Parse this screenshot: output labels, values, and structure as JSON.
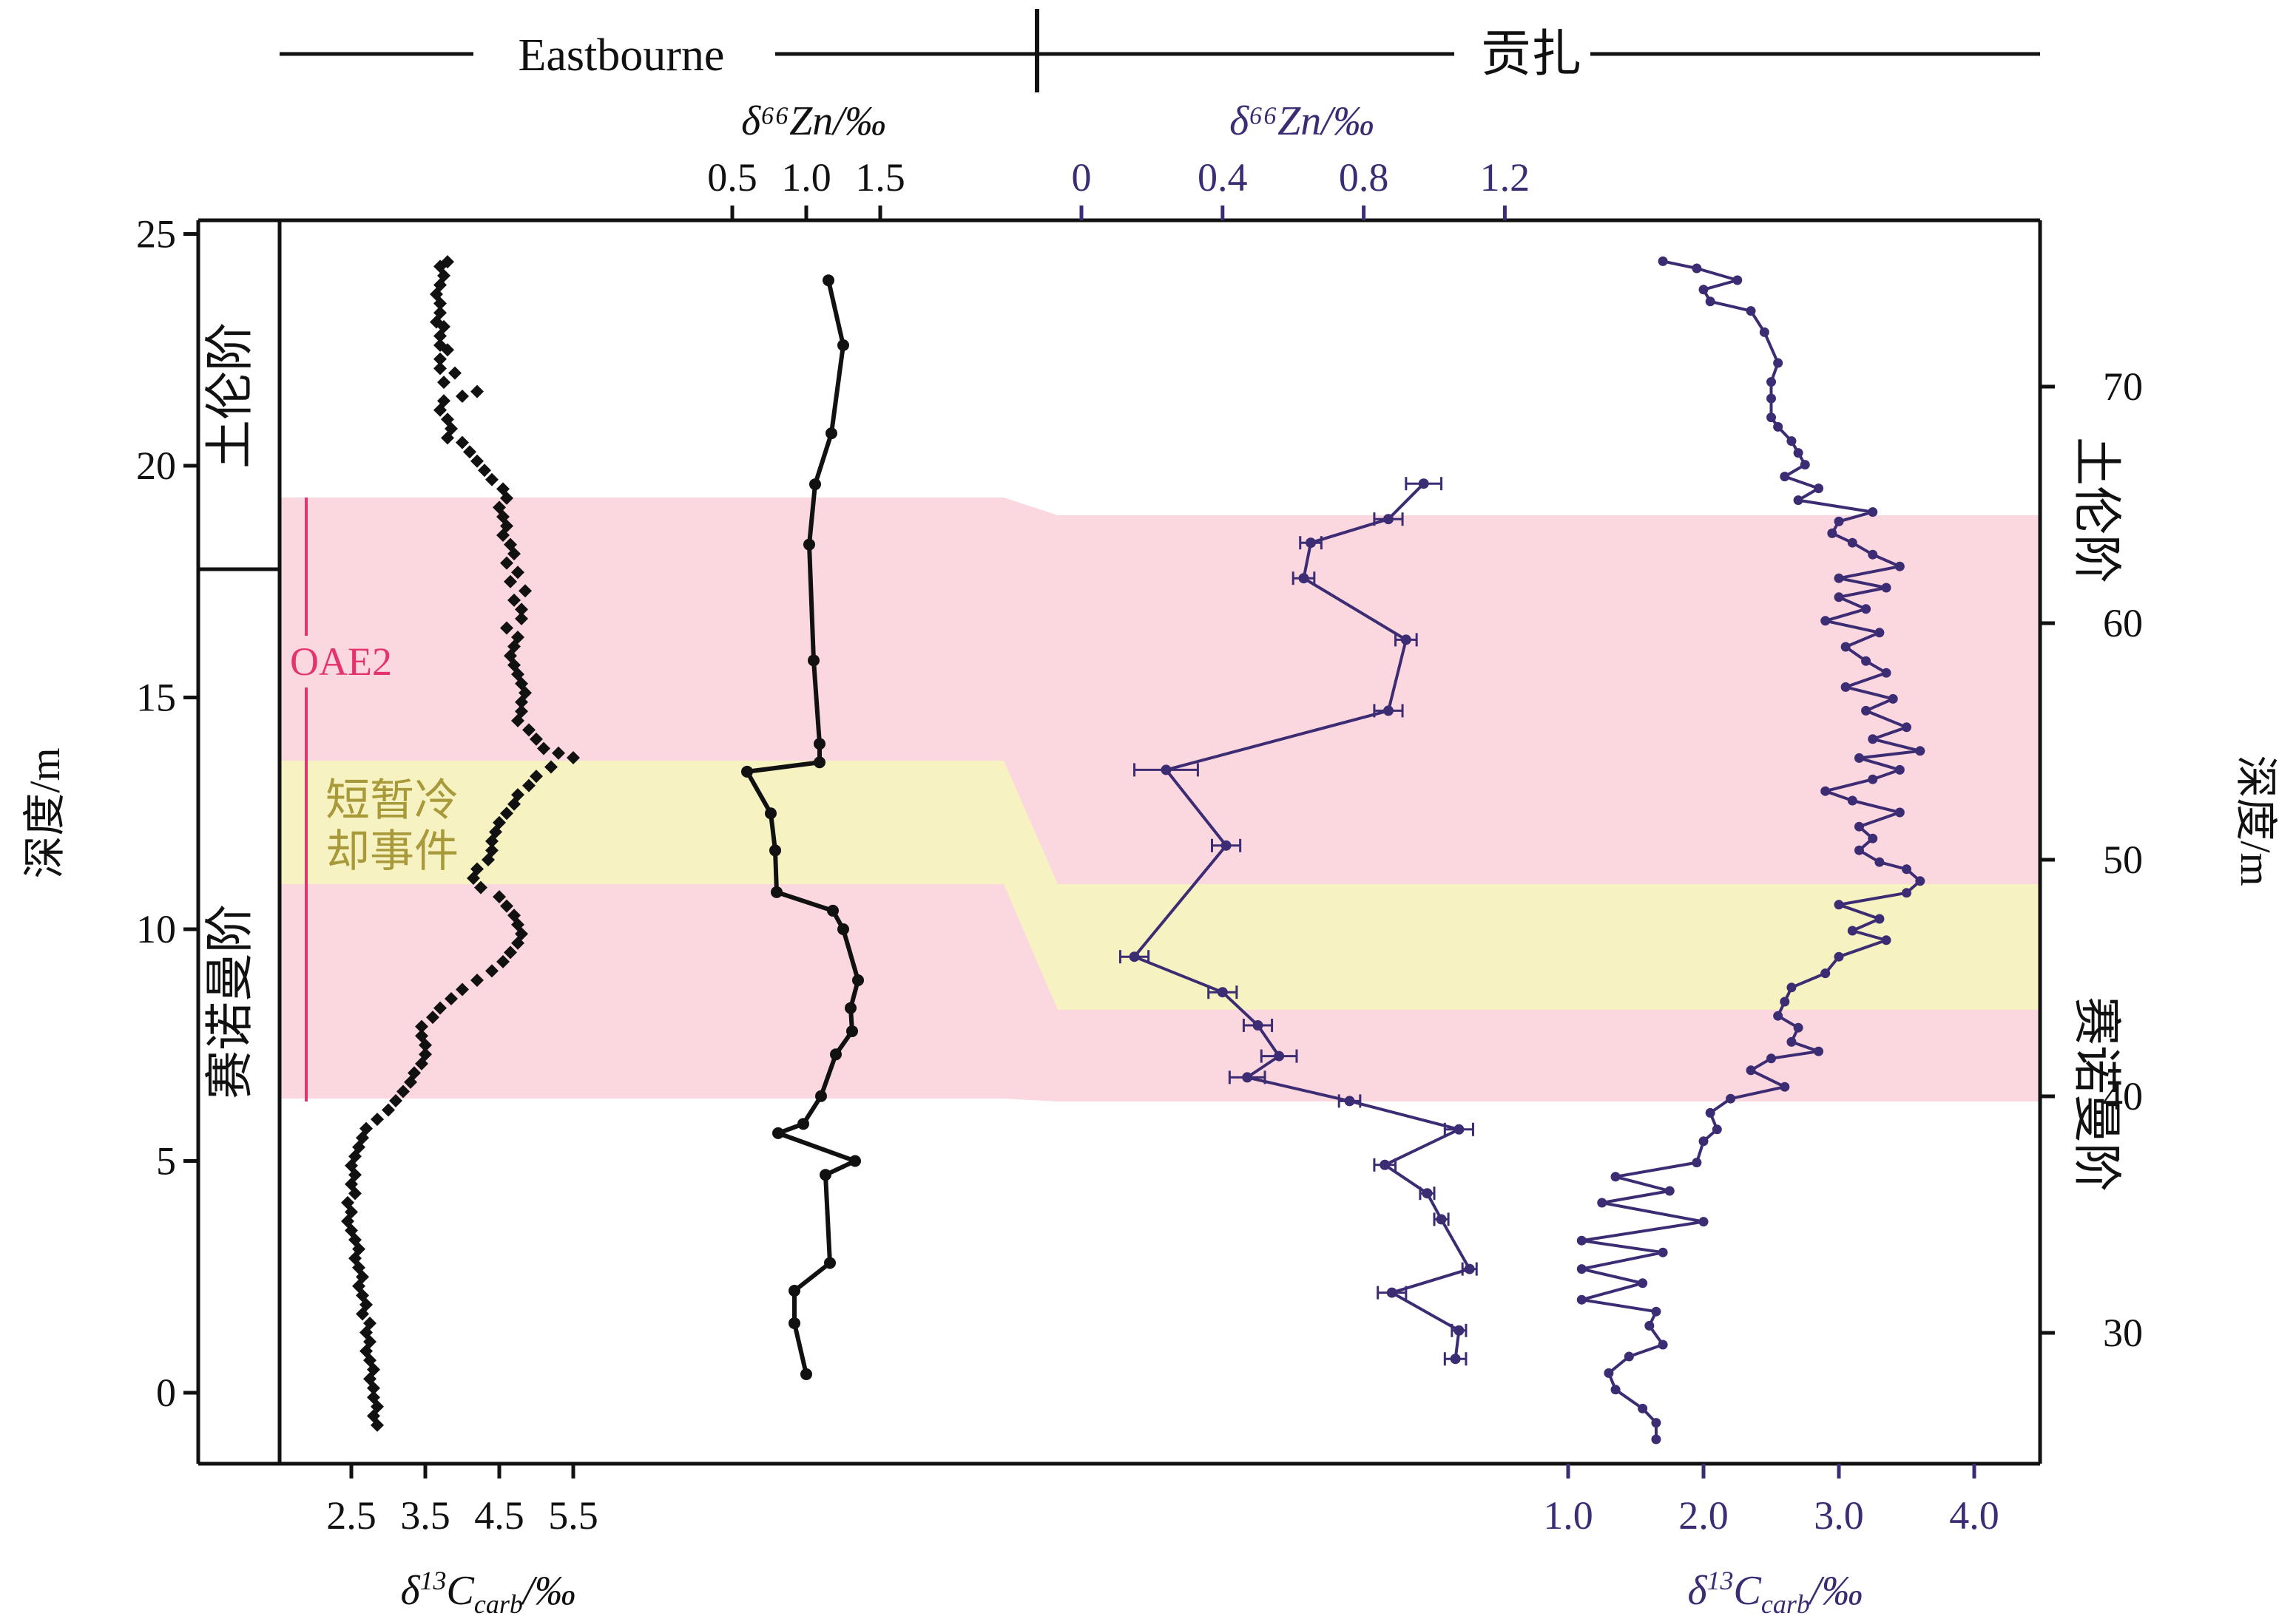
{
  "header": {
    "left_label": "Eastbourne",
    "right_label": "贡扎"
  },
  "colors": {
    "black": "#111111",
    "purple": "#3c2c73",
    "pink_band": "#fbd7e0",
    "yellow_band": "#f7f2c2",
    "oae2": "#e5336e",
    "olive_text": "#a89a3a"
  },
  "labels": {
    "oae2": "OAE2",
    "cooling_line1": "短暂冷",
    "cooling_line2": "却事件",
    "stage_turonian_left": "土伦阶",
    "stage_cenomanian_left": "赛诺曼阶",
    "stage_turonian_right": "土伦阶",
    "stage_cenomanian_right": "赛诺曼阶",
    "left_y_title": "深度/m",
    "right_y_title": "深度/m",
    "zn_title_black": "δ⁶⁶Zn/‰",
    "zn_title_purple": "δ⁶⁶Zn/‰",
    "c_title_left": "δ¹³C_carb/‰",
    "c_title_right": "δ¹³C_carb/‰"
  },
  "chart_data": [
    {
      "name": "Eastbourne δ13Ccarb",
      "type": "scatter",
      "xlabel": "δ13Ccarb/‰",
      "ylabel": "深度/m",
      "x_ticks": [
        "2.5",
        "3.5",
        "4.5",
        "5.5"
      ],
      "y_ticks": [
        "0",
        "5",
        "10",
        "15",
        "20",
        "25"
      ],
      "ylim": [
        -1.5,
        25.3
      ],
      "points": [
        [
          3.8,
          24.4
        ],
        [
          3.7,
          24.3
        ],
        [
          3.75,
          24.1
        ],
        [
          3.7,
          23.9
        ],
        [
          3.65,
          23.7
        ],
        [
          3.7,
          23.5
        ],
        [
          3.7,
          23.3
        ],
        [
          3.65,
          23.1
        ],
        [
          3.75,
          23.0
        ],
        [
          3.7,
          22.8
        ],
        [
          3.7,
          22.6
        ],
        [
          3.8,
          22.5
        ],
        [
          3.7,
          22.3
        ],
        [
          3.7,
          22.1
        ],
        [
          3.9,
          22.0
        ],
        [
          3.75,
          21.8
        ],
        [
          4.2,
          21.6
        ],
        [
          4.0,
          21.5
        ],
        [
          3.75,
          21.4
        ],
        [
          3.7,
          21.2
        ],
        [
          3.8,
          21.0
        ],
        [
          3.85,
          20.8
        ],
        [
          3.8,
          20.6
        ],
        [
          4.0,
          20.5
        ],
        [
          4.1,
          20.3
        ],
        [
          4.2,
          20.1
        ],
        [
          4.3,
          19.9
        ],
        [
          4.4,
          19.7
        ],
        [
          4.55,
          19.5
        ],
        [
          4.6,
          19.3
        ],
        [
          4.5,
          19.1
        ],
        [
          4.55,
          18.9
        ],
        [
          4.6,
          18.7
        ],
        [
          4.55,
          18.5
        ],
        [
          4.65,
          18.3
        ],
        [
          4.7,
          18.1
        ],
        [
          4.6,
          17.9
        ],
        [
          4.75,
          17.7
        ],
        [
          4.65,
          17.5
        ],
        [
          4.85,
          17.3
        ],
        [
          4.7,
          17.1
        ],
        [
          4.8,
          16.9
        ],
        [
          4.8,
          16.7
        ],
        [
          4.6,
          16.5
        ],
        [
          4.75,
          16.3
        ],
        [
          4.7,
          16.1
        ],
        [
          4.65,
          15.9
        ],
        [
          4.7,
          15.7
        ],
        [
          4.75,
          15.5
        ],
        [
          4.8,
          15.3
        ],
        [
          4.85,
          15.1
        ],
        [
          4.8,
          14.9
        ],
        [
          4.8,
          14.7
        ],
        [
          4.75,
          14.5
        ],
        [
          4.9,
          14.3
        ],
        [
          5.0,
          14.1
        ],
        [
          5.1,
          13.9
        ],
        [
          5.3,
          13.8
        ],
        [
          5.5,
          13.7
        ],
        [
          5.2,
          13.5
        ],
        [
          5.0,
          13.3
        ],
        [
          4.9,
          13.1
        ],
        [
          4.75,
          12.9
        ],
        [
          4.7,
          12.7
        ],
        [
          4.6,
          12.5
        ],
        [
          4.5,
          12.3
        ],
        [
          4.45,
          12.1
        ],
        [
          4.4,
          11.9
        ],
        [
          4.4,
          11.7
        ],
        [
          4.35,
          11.5
        ],
        [
          4.2,
          11.3
        ],
        [
          4.15,
          11.1
        ],
        [
          4.25,
          10.9
        ],
        [
          4.5,
          10.7
        ],
        [
          4.6,
          10.5
        ],
        [
          4.7,
          10.3
        ],
        [
          4.75,
          10.1
        ],
        [
          4.8,
          9.9
        ],
        [
          4.75,
          9.7
        ],
        [
          4.65,
          9.5
        ],
        [
          4.55,
          9.3
        ],
        [
          4.4,
          9.1
        ],
        [
          4.2,
          8.9
        ],
        [
          4.0,
          8.7
        ],
        [
          3.85,
          8.5
        ],
        [
          3.7,
          8.3
        ],
        [
          3.6,
          8.1
        ],
        [
          3.45,
          7.9
        ],
        [
          3.45,
          7.7
        ],
        [
          3.5,
          7.5
        ],
        [
          3.5,
          7.3
        ],
        [
          3.45,
          7.1
        ],
        [
          3.35,
          6.9
        ],
        [
          3.3,
          6.7
        ],
        [
          3.2,
          6.5
        ],
        [
          3.1,
          6.3
        ],
        [
          3.0,
          6.1
        ],
        [
          2.85,
          5.9
        ],
        [
          2.7,
          5.7
        ],
        [
          2.65,
          5.5
        ],
        [
          2.6,
          5.3
        ],
        [
          2.55,
          5.1
        ],
        [
          2.5,
          4.9
        ],
        [
          2.55,
          4.7
        ],
        [
          2.5,
          4.5
        ],
        [
          2.55,
          4.3
        ],
        [
          2.45,
          4.1
        ],
        [
          2.5,
          3.9
        ],
        [
          2.45,
          3.7
        ],
        [
          2.5,
          3.5
        ],
        [
          2.55,
          3.3
        ],
        [
          2.6,
          3.1
        ],
        [
          2.55,
          2.9
        ],
        [
          2.6,
          2.7
        ],
        [
          2.65,
          2.5
        ],
        [
          2.6,
          2.3
        ],
        [
          2.65,
          2.1
        ],
        [
          2.7,
          1.9
        ],
        [
          2.65,
          1.7
        ],
        [
          2.75,
          1.5
        ],
        [
          2.7,
          1.3
        ],
        [
          2.75,
          1.1
        ],
        [
          2.7,
          0.9
        ],
        [
          2.75,
          0.7
        ],
        [
          2.8,
          0.5
        ],
        [
          2.75,
          0.3
        ],
        [
          2.8,
          0.1
        ],
        [
          2.8,
          -0.1
        ],
        [
          2.85,
          -0.3
        ],
        [
          2.8,
          -0.5
        ],
        [
          2.85,
          -0.7
        ]
      ]
    },
    {
      "name": "Eastbourne δ66Zn",
      "type": "line",
      "x_ticks": [
        "0.5",
        "1.0",
        "1.5"
      ],
      "points": [
        [
          1.15,
          24.0
        ],
        [
          1.25,
          22.6
        ],
        [
          1.17,
          20.7
        ],
        [
          1.06,
          19.6
        ],
        [
          1.02,
          18.3
        ],
        [
          1.05,
          15.8
        ],
        [
          1.09,
          14.0
        ],
        [
          1.09,
          13.6
        ],
        [
          0.6,
          13.4
        ],
        [
          0.76,
          12.5
        ],
        [
          0.79,
          11.7
        ],
        [
          0.8,
          10.8
        ],
        [
          1.18,
          10.4
        ],
        [
          1.25,
          10.0
        ],
        [
          1.35,
          8.9
        ],
        [
          1.3,
          8.3
        ],
        [
          1.31,
          7.8
        ],
        [
          1.2,
          7.3
        ],
        [
          1.1,
          6.4
        ],
        [
          0.98,
          5.8
        ],
        [
          0.81,
          5.6
        ],
        [
          1.33,
          5.0
        ],
        [
          1.13,
          4.7
        ],
        [
          1.16,
          2.8
        ],
        [
          0.92,
          2.2
        ],
        [
          0.92,
          1.5
        ],
        [
          1.0,
          0.4
        ]
      ]
    },
    {
      "name": "贡扎 δ66Zn",
      "type": "line",
      "x_ticks": [
        "0",
        "0.4",
        "0.8",
        "1.2"
      ],
      "ylim": [
        24.4,
        76.9
      ],
      "points": [
        [
          0.97,
          65.9,
          0.05
        ],
        [
          0.87,
          64.4,
          0.04
        ],
        [
          0.65,
          63.4,
          0.03
        ],
        [
          0.63,
          61.9,
          0.03
        ],
        [
          0.92,
          59.3,
          0.03
        ],
        [
          0.87,
          56.3,
          0.04
        ],
        [
          0.24,
          53.8,
          0.09
        ],
        [
          0.41,
          50.6,
          0.04
        ],
        [
          0.15,
          45.9,
          0.04
        ],
        [
          0.4,
          44.4,
          0.04
        ],
        [
          0.5,
          43.0,
          0.04
        ],
        [
          0.56,
          41.7,
          0.05
        ],
        [
          0.47,
          40.8,
          0.05
        ],
        [
          0.76,
          39.8,
          0.03
        ],
        [
          1.07,
          38.6,
          0.04
        ],
        [
          0.86,
          37.1,
          0.03
        ],
        [
          0.98,
          35.9,
          0.02
        ],
        [
          1.02,
          34.8,
          0.02
        ],
        [
          1.1,
          32.7,
          0.02
        ],
        [
          0.88,
          31.7,
          0.04
        ],
        [
          1.07,
          30.1,
          0.02
        ],
        [
          1.06,
          28.9,
          0.03
        ]
      ]
    },
    {
      "name": "贡扎 δ13Ccarb",
      "type": "line",
      "xlabel": "δ13Ccarb/‰",
      "ylabel": "深度/m",
      "x_ticks": [
        "1.0",
        "2.0",
        "3.0",
        "4.0"
      ],
      "y_ticks": [
        "30",
        "40",
        "50",
        "60",
        "70"
      ],
      "points": [
        [
          1.65,
          25.5
        ],
        [
          1.65,
          26.2
        ],
        [
          1.55,
          26.8
        ],
        [
          1.35,
          27.6
        ],
        [
          1.3,
          28.3
        ],
        [
          1.45,
          29.0
        ],
        [
          1.7,
          29.5
        ],
        [
          1.6,
          30.3
        ],
        [
          1.65,
          30.9
        ],
        [
          1.1,
          31.4
        ],
        [
          1.55,
          32.1
        ],
        [
          1.1,
          32.7
        ],
        [
          1.7,
          33.4
        ],
        [
          1.1,
          33.9
        ],
        [
          2.0,
          34.7
        ],
        [
          1.25,
          35.5
        ],
        [
          1.75,
          36.0
        ],
        [
          1.35,
          36.6
        ],
        [
          1.95,
          37.2
        ],
        [
          2.0,
          38.1
        ],
        [
          2.1,
          38.6
        ],
        [
          2.05,
          39.3
        ],
        [
          2.2,
          39.9
        ],
        [
          2.6,
          40.4
        ],
        [
          2.35,
          41.1
        ],
        [
          2.5,
          41.6
        ],
        [
          2.85,
          41.9
        ],
        [
          2.65,
          42.3
        ],
        [
          2.7,
          42.9
        ],
        [
          2.55,
          43.4
        ],
        [
          2.6,
          44.0
        ],
        [
          2.65,
          44.6
        ],
        [
          2.9,
          45.2
        ],
        [
          3.0,
          45.9
        ],
        [
          3.35,
          46.6
        ],
        [
          3.1,
          47.0
        ],
        [
          3.3,
          47.5
        ],
        [
          3.0,
          48.1
        ],
        [
          3.5,
          48.6
        ],
        [
          3.6,
          49.1
        ],
        [
          3.5,
          49.6
        ],
        [
          3.3,
          49.9
        ],
        [
          3.15,
          50.4
        ],
        [
          3.25,
          50.9
        ],
        [
          3.15,
          51.4
        ],
        [
          3.45,
          52.0
        ],
        [
          3.1,
          52.5
        ],
        [
          2.9,
          52.9
        ],
        [
          3.25,
          53.4
        ],
        [
          3.45,
          53.8
        ],
        [
          3.15,
          54.3
        ],
        [
          3.6,
          54.6
        ],
        [
          3.25,
          55.1
        ],
        [
          3.5,
          55.6
        ],
        [
          3.2,
          56.3
        ],
        [
          3.4,
          56.8
        ],
        [
          3.05,
          57.3
        ],
        [
          3.35,
          57.9
        ],
        [
          3.2,
          58.4
        ],
        [
          3.05,
          59.0
        ],
        [
          3.3,
          59.6
        ],
        [
          2.9,
          60.1
        ],
        [
          3.2,
          60.6
        ],
        [
          3.0,
          61.1
        ],
        [
          3.35,
          61.5
        ],
        [
          3.0,
          61.9
        ],
        [
          3.45,
          62.4
        ],
        [
          3.25,
          62.9
        ],
        [
          3.1,
          63.4
        ],
        [
          2.95,
          63.8
        ],
        [
          3.0,
          64.3
        ],
        [
          3.25,
          64.7
        ],
        [
          2.7,
          65.2
        ],
        [
          2.85,
          65.7
        ],
        [
          2.6,
          66.2
        ],
        [
          2.75,
          66.7
        ],
        [
          2.7,
          67.2
        ],
        [
          2.65,
          67.7
        ],
        [
          2.55,
          68.3
        ],
        [
          2.5,
          68.7
        ],
        [
          2.5,
          69.5
        ],
        [
          2.5,
          70.2
        ],
        [
          2.55,
          71.0
        ],
        [
          2.45,
          72.3
        ],
        [
          2.35,
          73.2
        ],
        [
          2.05,
          73.6
        ],
        [
          2.0,
          74.1
        ],
        [
          2.25,
          74.5
        ],
        [
          1.95,
          75.0
        ],
        [
          1.7,
          75.3
        ]
      ]
    }
  ]
}
